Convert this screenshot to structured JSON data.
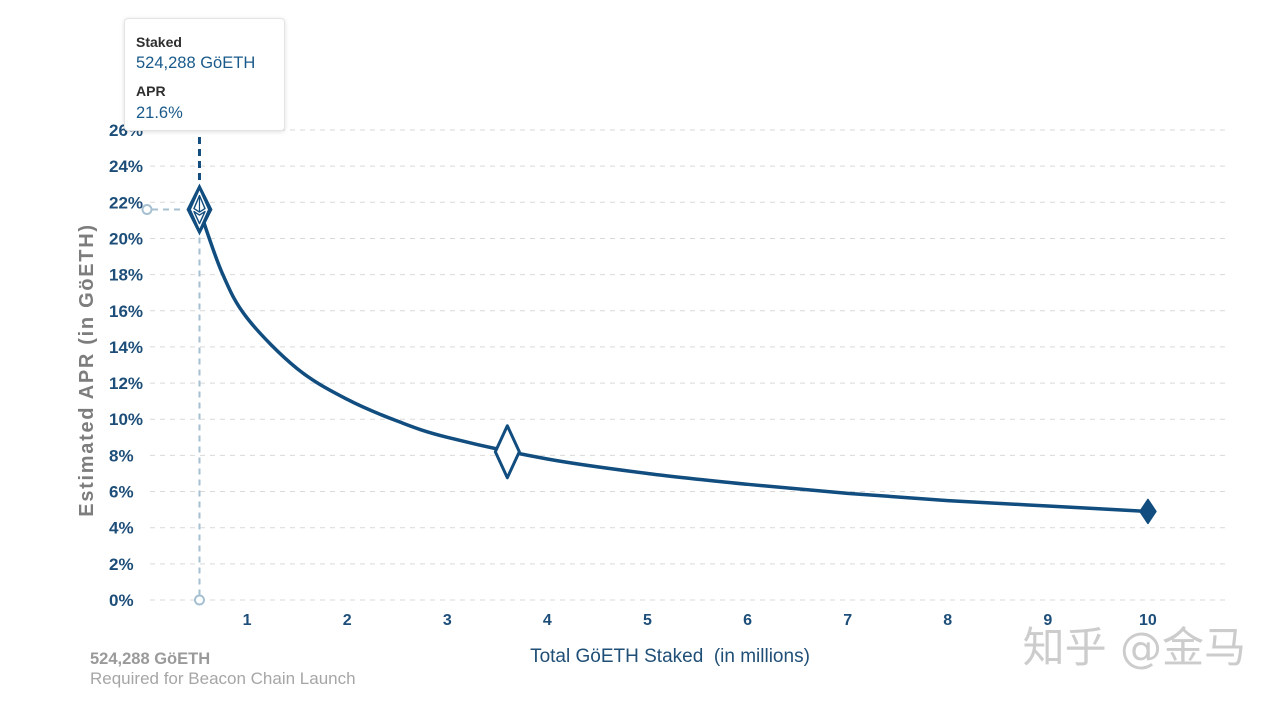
{
  "chart_data": {
    "type": "line",
    "xlabel": "Total GöETH Staked  (in millions)",
    "ylabel": "Estimated APR (in GöETH)",
    "xlim": [
      0,
      10.8
    ],
    "ylim": [
      0,
      26
    ],
    "xticks": [
      1,
      2,
      3,
      4,
      5,
      6,
      7,
      8,
      9,
      10
    ],
    "xtick_labels": [
      "1",
      "2",
      "3",
      "4",
      "5",
      "6",
      "7",
      "8",
      "9",
      "10"
    ],
    "yticks": [
      0,
      2,
      4,
      6,
      8,
      10,
      12,
      14,
      16,
      18,
      20,
      22,
      24,
      26
    ],
    "ytick_labels": [
      "0%",
      "2%",
      "4%",
      "6%",
      "8%",
      "10%",
      "12%",
      "14%",
      "16%",
      "18%",
      "20%",
      "22%",
      "24%",
      "26%"
    ],
    "grid": true,
    "series": [
      {
        "x": [
          0.524288,
          0.75,
          1,
          1.5,
          2,
          2.5,
          3,
          4,
          5,
          6,
          7,
          8,
          9,
          10
        ],
        "y": [
          21.6,
          18.1,
          15.6,
          12.8,
          11.1,
          9.9,
          9.0,
          7.8,
          7.0,
          6.4,
          5.9,
          5.5,
          5.2,
          4.9
        ]
      }
    ],
    "markers": [
      {
        "x": 0.524288,
        "y": 21.6,
        "icon": "ethereum-diamond-icon"
      },
      {
        "x": 3.6,
        "y": 8.2,
        "icon": "hollow-diamond-icon"
      },
      {
        "x": 10,
        "y": 4.9,
        "icon": "filled-diamond-icon"
      }
    ]
  },
  "tooltip": {
    "staked_label": "Staked",
    "staked_value": "524,288 GöETH",
    "apr_label": "APR",
    "apr_value": "21.6%"
  },
  "annotation": {
    "value": "524,288 GöETH",
    "caption": "Required for Beacon Chain Launch"
  },
  "watermark": "知乎 @金马",
  "colors": {
    "line": "#114d7e",
    "tick_text": "#1d4e79",
    "grid": "#d9d9d9",
    "guide": "#a6c0d2"
  }
}
